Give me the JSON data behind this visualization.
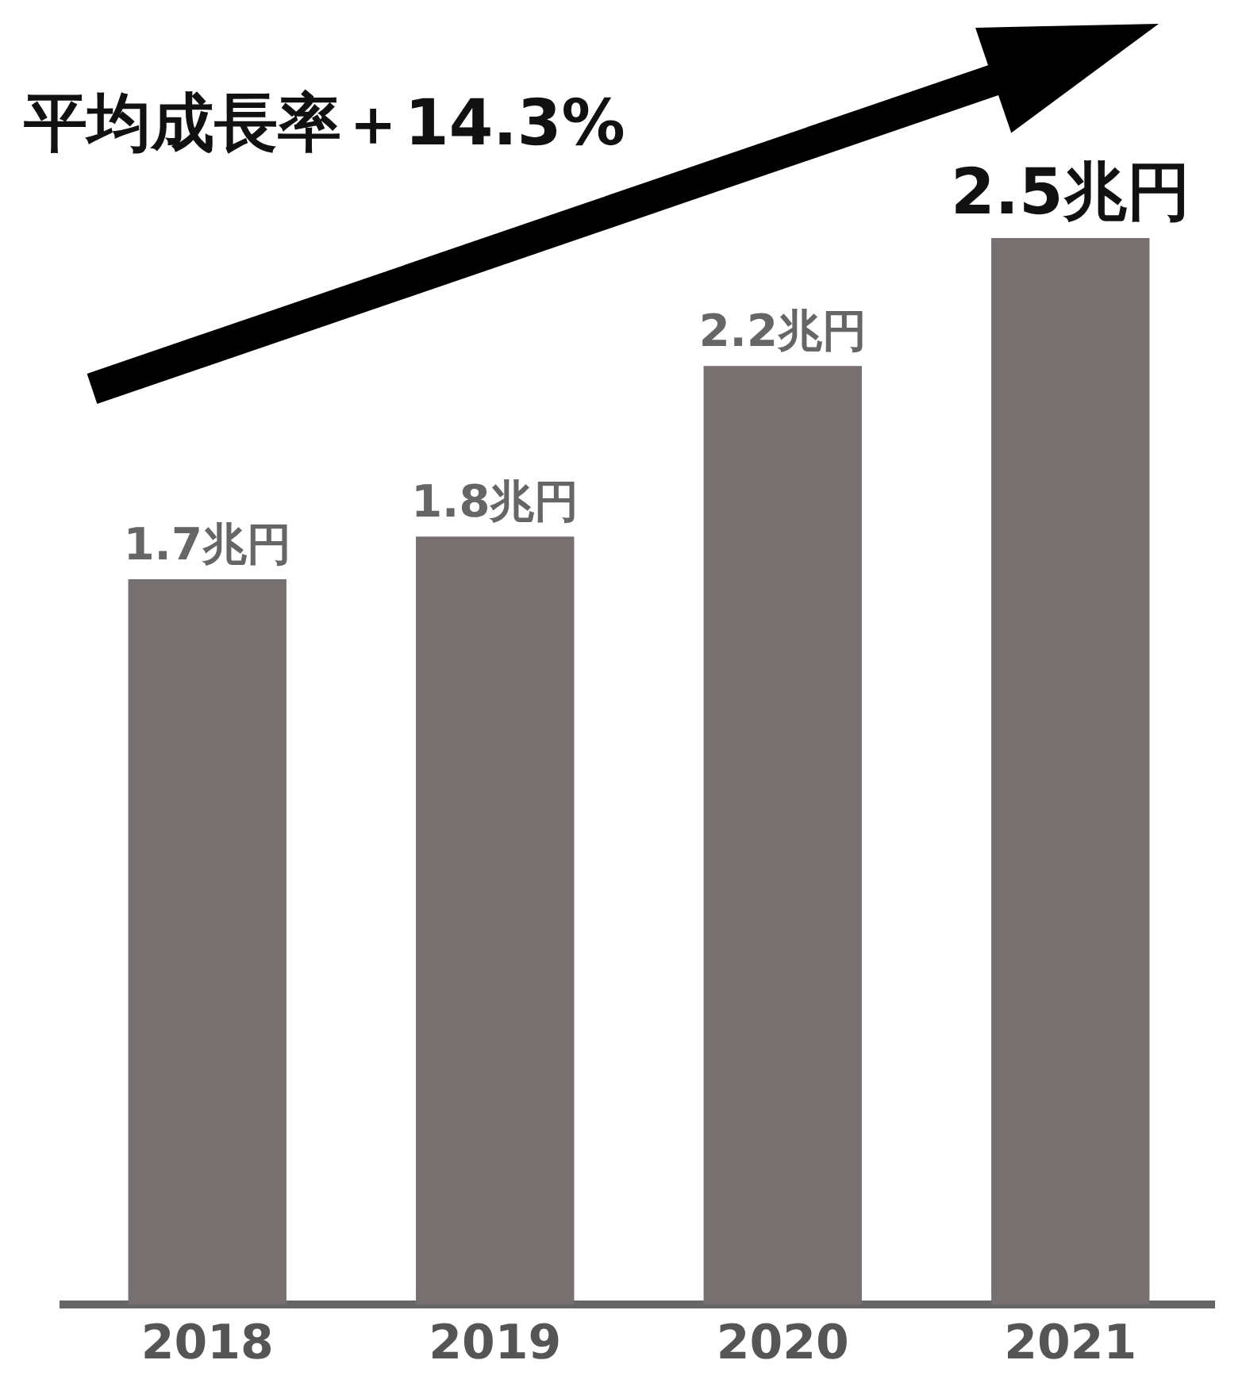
{
  "chart_data": {
    "type": "bar",
    "categories": [
      "2018",
      "2019",
      "2020",
      "2021"
    ],
    "values": [
      1.7,
      1.8,
      2.2,
      2.5
    ],
    "value_labels": [
      "1.7兆円",
      "1.8兆円",
      "2.2兆円",
      "2.5兆円"
    ],
    "color": "#767170",
    "annotations": [
      "平均成長率＋14.3%"
    ],
    "grid": false,
    "legend": false
  }
}
